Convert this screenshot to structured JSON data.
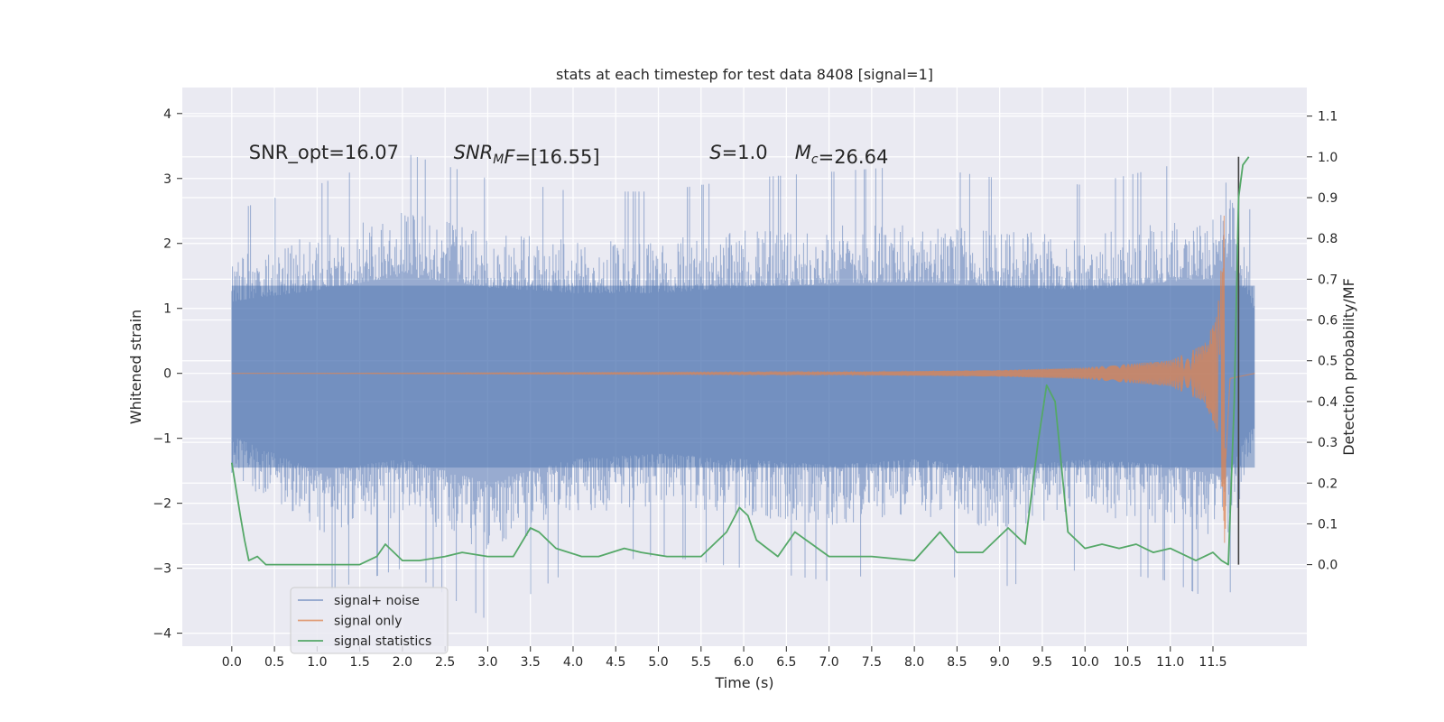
{
  "chart_data": {
    "type": "line",
    "title": "stats at each timestep for test data 8408 [signal=1]",
    "xlabel": "Time (s)",
    "ylabel": "Whitened strain",
    "ylabel_right": "Detection probability/MF",
    "xlim": [
      -0.58,
      12.6
    ],
    "ylim": [
      -4.2,
      4.4
    ],
    "ylim_right": [
      -0.2,
      1.17
    ],
    "x_ticks": [
      0.0,
      0.5,
      1.0,
      1.5,
      2.0,
      2.5,
      3.0,
      3.5,
      4.0,
      4.5,
      5.0,
      5.5,
      6.0,
      6.5,
      7.0,
      7.5,
      8.0,
      8.5,
      9.0,
      9.5,
      10.0,
      10.5,
      11.0,
      11.5
    ],
    "x_tick_labels": [
      "0.0",
      "0.5",
      "1.0",
      "1.5",
      "2.0",
      "2.5",
      "3.0",
      "3.5",
      "4.0",
      "4.5",
      "5.0",
      "5.5",
      "6.0",
      "6.5",
      "7.0",
      "7.5",
      "8.0",
      "8.5",
      "9.0",
      "9.5",
      "10.0",
      "10.5",
      "11.0",
      "11.5"
    ],
    "y_ticks": [
      -4,
      -3,
      -2,
      -1,
      0,
      1,
      2,
      3,
      4
    ],
    "y_tick_labels": [
      "−4",
      "−3",
      "−2",
      "−1",
      "0",
      "1",
      "2",
      "3",
      "4"
    ],
    "y_right_ticks": [
      0.0,
      0.1,
      0.2,
      0.3,
      0.4,
      0.5,
      0.6,
      0.7,
      0.8,
      0.9,
      1.0,
      1.1
    ],
    "y_right_tick_labels": [
      "0.0",
      "0.1",
      "0.2",
      "0.3",
      "0.4",
      "0.5",
      "0.6",
      "0.7",
      "0.8",
      "0.9",
      "1.0",
      "1.1"
    ],
    "grid": true,
    "legend_position": "lower-left",
    "colors": {
      "background": "#eaeaf2",
      "grid": "#ffffff",
      "noise": "#4c72b0",
      "signal": "#dd8452",
      "stats": "#55a868",
      "marker": "#404040"
    },
    "annotations": [
      {
        "parts": [
          {
            "text": "SNR_opt=16.07"
          }
        ]
      },
      {
        "parts": [
          {
            "text": "SNR",
            "italic": true
          },
          {
            "text": "M",
            "italic": true,
            "sub": true
          },
          {
            "text": "F",
            "italic": true
          },
          {
            "text": "=[16.55]"
          }
        ]
      },
      {
        "parts": [
          {
            "text": "S",
            "italic": true
          },
          {
            "text": "=1.0"
          }
        ]
      },
      {
        "parts": [
          {
            "text": "M",
            "italic": true
          },
          {
            "text": "c",
            "italic": true,
            "sub": true
          },
          {
            "text": "=26.64"
          }
        ]
      }
    ],
    "annotation_x": [
      0.2,
      2.6,
      5.6,
      6.6
    ],
    "annotation_y": 3.3,
    "series": [
      {
        "name": "signal+ noise",
        "axis": "left",
        "kind": "dense-noise",
        "x_range": [
          0.0,
          11.99
        ],
        "envelope_x": [
          0.0,
          1.0,
          2.0,
          3.0,
          4.0,
          5.0,
          6.0,
          7.0,
          8.0,
          9.0,
          10.0,
          11.0,
          11.5,
          11.65,
          11.99
        ],
        "upper": [
          2.5,
          2.9,
          3.4,
          3.0,
          2.8,
          2.8,
          3.0,
          3.1,
          3.2,
          3.0,
          2.9,
          3.2,
          3.3,
          4.1,
          2.2
        ],
        "lower": [
          -2.2,
          -3.4,
          -3.0,
          -3.8,
          -3.0,
          -2.8,
          -3.0,
          -3.2,
          -3.0,
          -3.3,
          -3.0,
          -3.2,
          -3.5,
          -3.7,
          -1.6
        ]
      },
      {
        "name": "signal only",
        "axis": "left",
        "kind": "chirp",
        "x_range": [
          0.0,
          11.99
        ],
        "merger_time": 11.65,
        "envelope_x": [
          0.0,
          7.0,
          9.0,
          10.0,
          11.0,
          11.4,
          11.55,
          11.62,
          11.65,
          11.7,
          11.99
        ],
        "envelope": [
          0.0,
          0.02,
          0.05,
          0.09,
          0.2,
          0.45,
          0.9,
          2.0,
          3.4,
          0.2,
          0.0
        ]
      },
      {
        "name": "signal statistics",
        "axis": "right",
        "kind": "line",
        "x": [
          0.0,
          0.1,
          0.15,
          0.2,
          0.3,
          0.4,
          0.5,
          0.7,
          1.0,
          1.5,
          1.7,
          1.8,
          1.9,
          2.0,
          2.2,
          2.5,
          2.7,
          3.0,
          3.3,
          3.5,
          3.6,
          3.8,
          4.1,
          4.3,
          4.6,
          4.8,
          5.1,
          5.5,
          5.8,
          5.95,
          6.05,
          6.15,
          6.4,
          6.6,
          6.8,
          7.0,
          7.5,
          8.0,
          8.3,
          8.5,
          8.8,
          9.1,
          9.3,
          9.45,
          9.55,
          9.65,
          9.8,
          10.0,
          10.2,
          10.4,
          10.6,
          10.8,
          11.0,
          11.3,
          11.5,
          11.6,
          11.68,
          11.75,
          11.8,
          11.85,
          11.92
        ],
        "y": [
          0.25,
          0.12,
          0.06,
          0.01,
          0.02,
          0.0,
          0.0,
          0.0,
          0.0,
          0.0,
          0.02,
          0.05,
          0.03,
          0.01,
          0.01,
          0.02,
          0.03,
          0.02,
          0.02,
          0.09,
          0.08,
          0.04,
          0.02,
          0.02,
          0.04,
          0.03,
          0.02,
          0.02,
          0.08,
          0.14,
          0.12,
          0.06,
          0.02,
          0.08,
          0.05,
          0.02,
          0.02,
          0.01,
          0.08,
          0.03,
          0.03,
          0.09,
          0.05,
          0.3,
          0.44,
          0.4,
          0.08,
          0.04,
          0.05,
          0.04,
          0.05,
          0.03,
          0.04,
          0.01,
          0.03,
          0.01,
          0.0,
          0.4,
          0.9,
          0.98,
          1.0
        ]
      }
    ],
    "vline_x": 11.8
  }
}
